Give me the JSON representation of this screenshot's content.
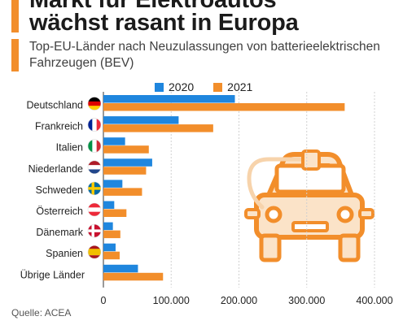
{
  "header": {
    "title": "Markt für Elektroautos\nwächst rasant in Europa",
    "subtitle": "Top-EU-Länder nach Neuzulassungen von batterieelektrischen Fahrzeugen (BEV)"
  },
  "footer": {
    "source": "Quelle: ACEA"
  },
  "colors": {
    "series_2020": "#1f86de",
    "series_2021": "#f28e2b",
    "accent": "#f28e2b",
    "car_icon": "#fbe3c8",
    "car_outline": "#f28e2b"
  },
  "icons": [
    "car-icon",
    "plug-icon",
    "flag-icons"
  ],
  "chart_data": {
    "type": "bar",
    "orientation": "horizontal",
    "categories": [
      "Deutschland",
      "Frankreich",
      "Italien",
      "Niederlande",
      "Schweden",
      "Österreich",
      "Dänemark",
      "Spanien",
      "Übrige Länder"
    ],
    "series": [
      {
        "name": "2020",
        "values": [
          194000,
          111000,
          32000,
          72000,
          28000,
          16000,
          14000,
          18000,
          51000
        ]
      },
      {
        "name": "2021",
        "values": [
          356000,
          162000,
          67000,
          63000,
          57000,
          34000,
          25000,
          24000,
          88000
        ]
      }
    ],
    "xlim": [
      0,
      400000
    ],
    "xticks": [
      0,
      100000,
      200000,
      300000,
      400000
    ],
    "xtick_labels": [
      "0",
      "100.000",
      "200.000",
      "300.000",
      "400.000"
    ],
    "grid": true,
    "legend_placement": "top"
  }
}
